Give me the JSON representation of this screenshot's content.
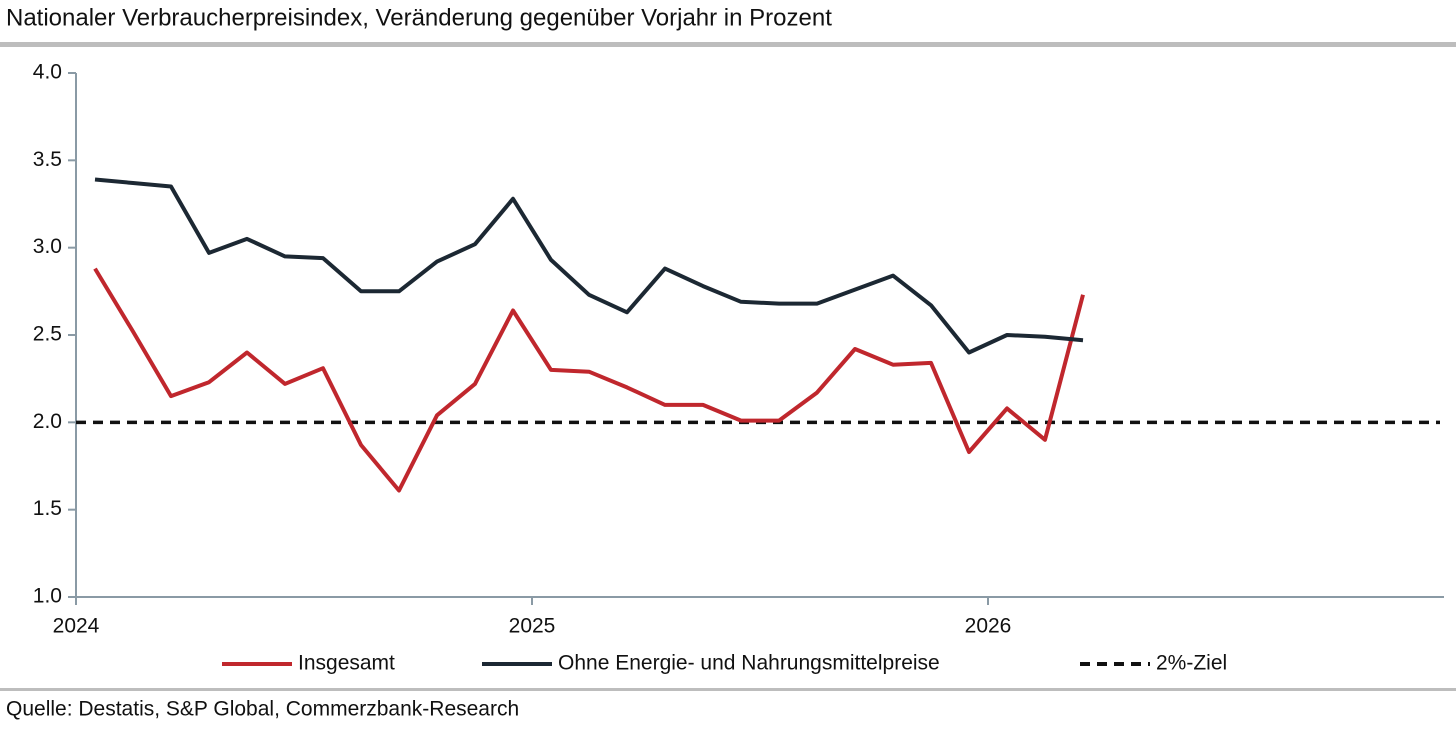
{
  "chart_data": {
    "type": "line",
    "title": "Nationaler Verbraucherpreisindex, Veränderung gegenüber Vorjahr in Prozent",
    "source": "Quelle: Destatis, S&P Global, Commerzbank-Research",
    "categories": [
      "2024",
      null,
      null,
      null,
      null,
      null,
      null,
      null,
      null,
      null,
      null,
      null,
      "2025",
      null,
      null,
      null,
      null,
      null,
      null,
      null,
      null,
      null,
      null,
      null,
      "2026",
      null,
      null,
      null,
      null,
      null,
      null,
      null,
      null,
      null,
      null,
      null
    ],
    "series": [
      {
        "name": "Insgesamt",
        "color": "#c0272d",
        "values": [
          2.88,
          2.52,
          2.15,
          2.23,
          2.4,
          2.22,
          2.31,
          1.87,
          1.61,
          2.04,
          2.22,
          2.64,
          2.3,
          2.29,
          2.2,
          2.1,
          2.1,
          2.01,
          2.01,
          2.17,
          2.42,
          2.33,
          2.34,
          1.83,
          2.08,
          1.9,
          2.73,
          null,
          null,
          null,
          null,
          null,
          null,
          null,
          null,
          null
        ]
      },
      {
        "name": "Ohne Energie- und Nahrungsmittelpreise",
        "color": "#1c2833",
        "values": [
          3.39,
          3.37,
          3.35,
          2.97,
          3.05,
          2.95,
          2.94,
          2.75,
          2.75,
          2.92,
          3.02,
          3.28,
          2.93,
          2.73,
          2.63,
          2.88,
          2.78,
          2.69,
          2.68,
          2.68,
          2.76,
          2.84,
          2.67,
          2.4,
          2.5,
          2.49,
          2.47,
          null,
          null,
          null,
          null,
          null,
          null,
          null,
          null,
          null
        ]
      }
    ],
    "reference_lines": [
      {
        "name": "2%-Ziel",
        "value": 2,
        "color": "#111111",
        "dashed": true
      }
    ],
    "ylim": [
      1,
      4
    ],
    "yticks": [
      {
        "value": 1,
        "label": "1.0"
      },
      1.5,
      {
        "value": 2,
        "label": "2.0"
      },
      2.5,
      {
        "value": 3,
        "label": "3.0"
      },
      3.5,
      {
        "value": 4,
        "label": "4.0"
      }
    ],
    "grid": false,
    "legend": "bottom"
  }
}
